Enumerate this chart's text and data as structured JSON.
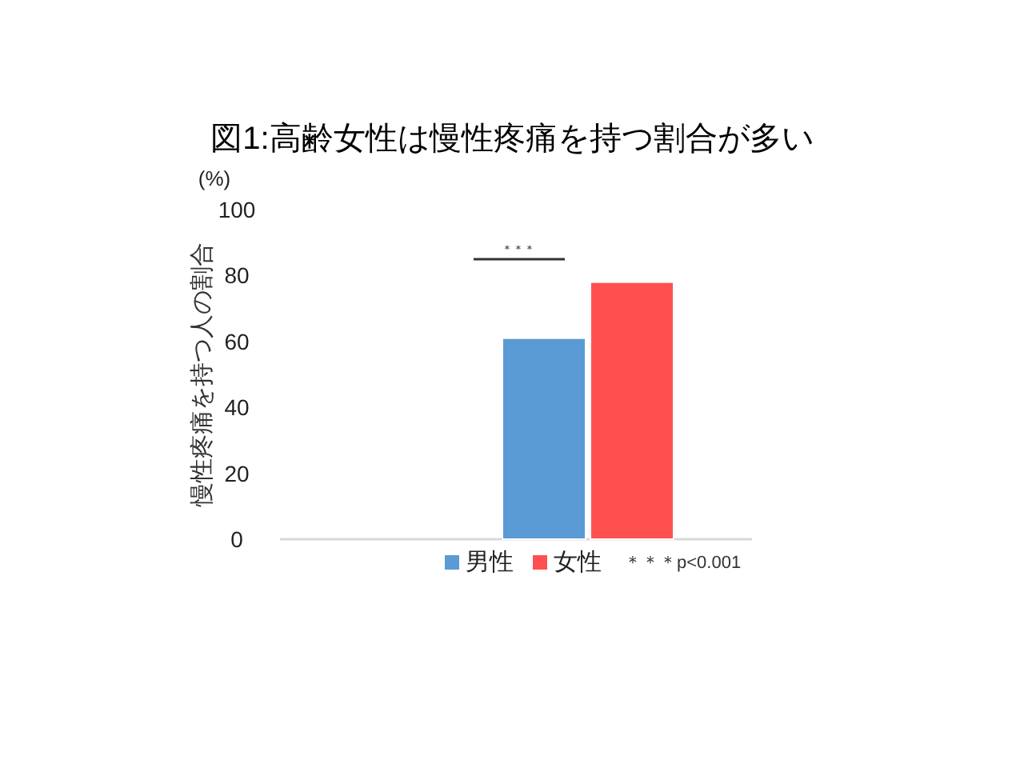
{
  "chart_data": {
    "type": "bar",
    "title": "図1:高齢女性は慢性疼痛を持つ割合が多い",
    "ylabel": "慢性疼痛を持つ人の割合",
    "categories": [
      null
    ],
    "series": [
      {
        "name": "男性",
        "color": "#5b9bd5",
        "values": [
          61
        ]
      },
      {
        "name": "女性",
        "color": "#ff5050",
        "values": [
          78
        ]
      }
    ],
    "ylim": [
      0,
      100
    ],
    "yticks": [
      0,
      20,
      40,
      60,
      80,
      100
    ],
    "tick_labels": "y",
    "legend": "bottom",
    "annotations": [
      "(%)",
      "＊＊＊",
      "＊＊＊p<0.001"
    ]
  }
}
